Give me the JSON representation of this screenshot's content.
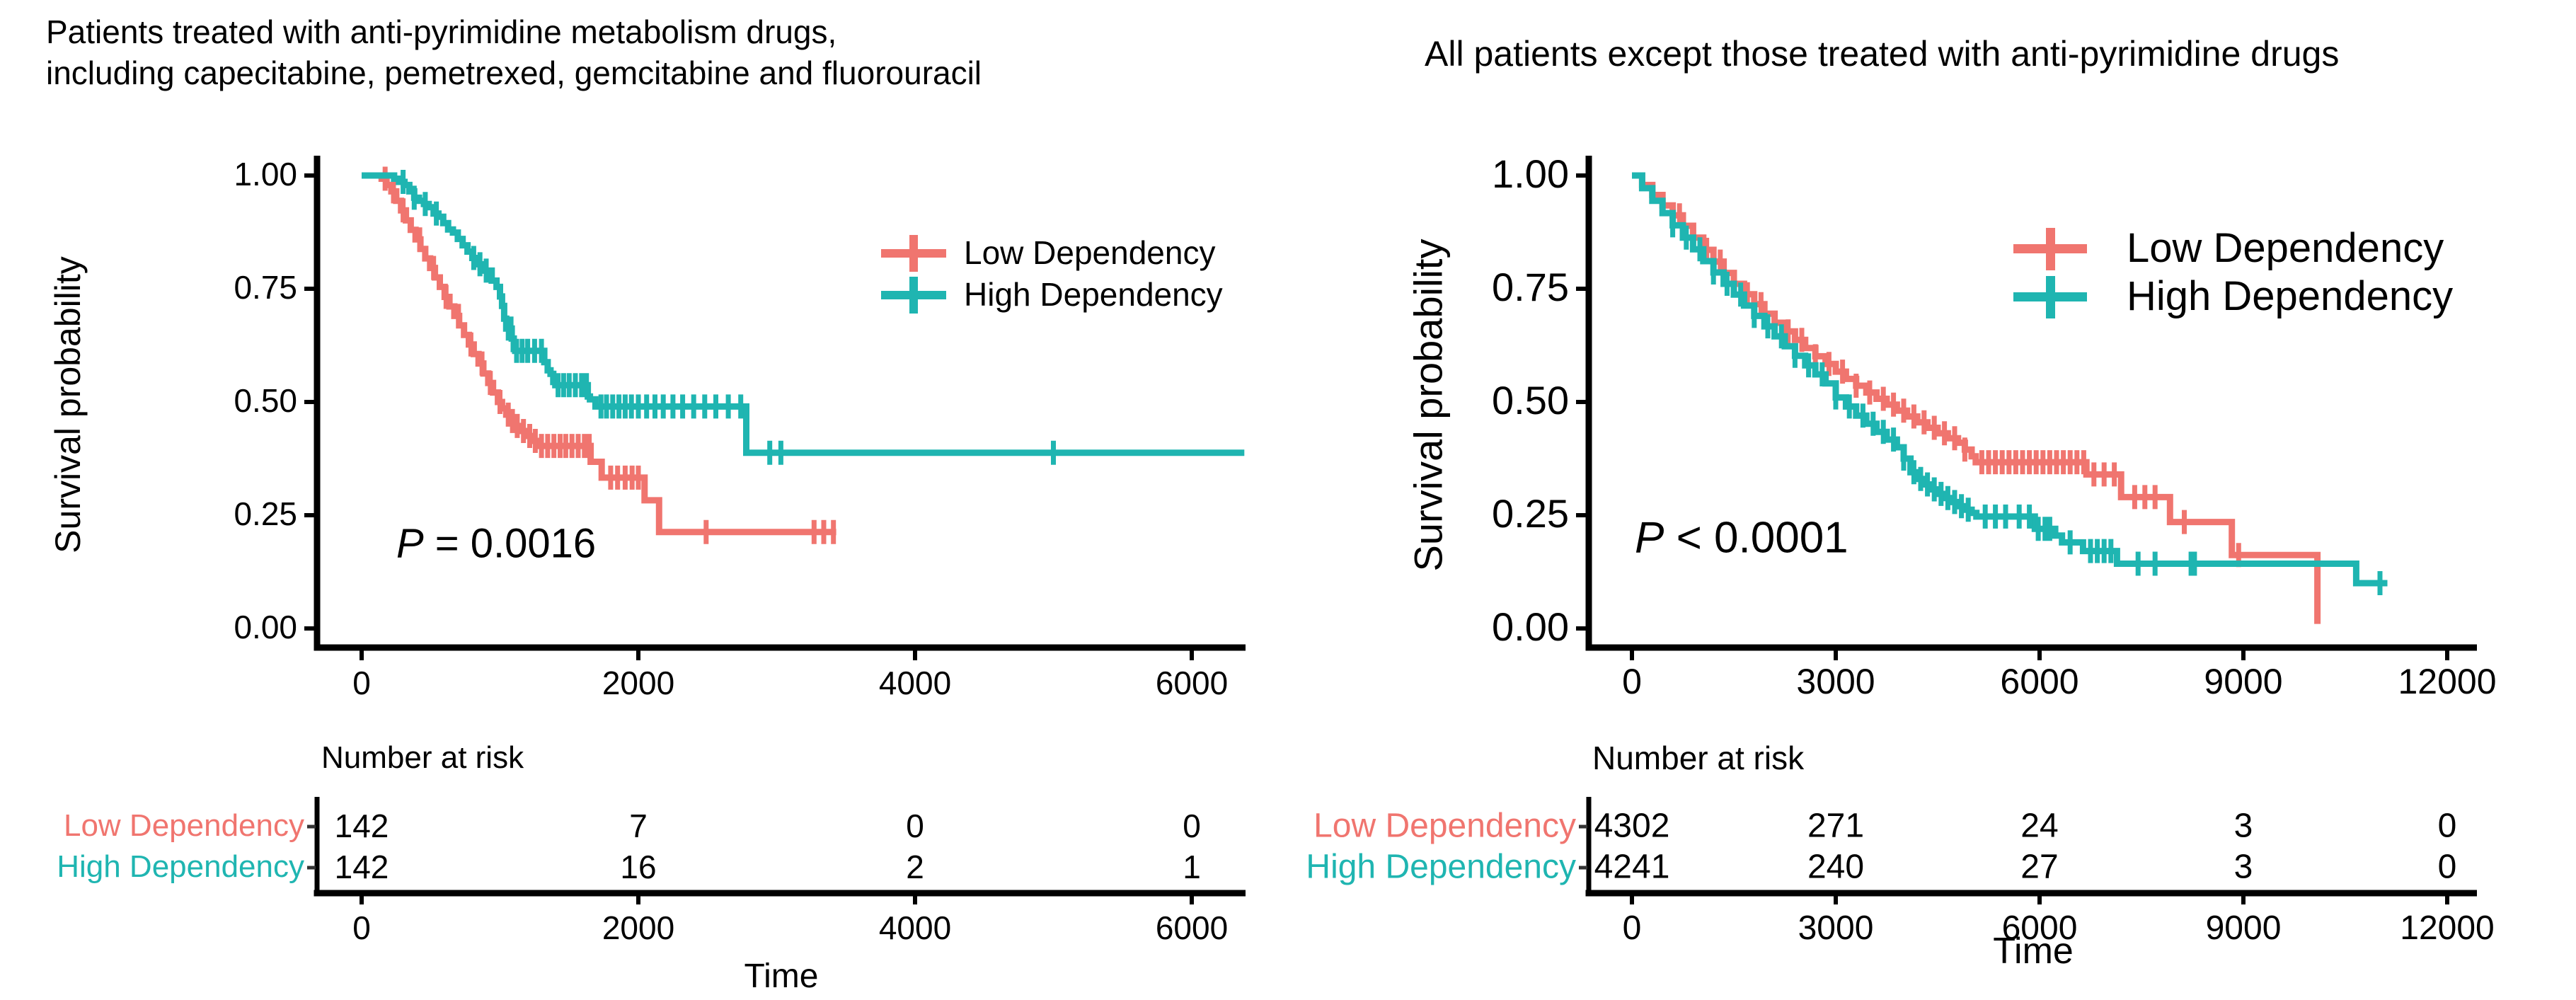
{
  "chart_data": [
    {
      "type": "line",
      "subtype": "kaplan-meier-step",
      "title_lines": [
        "Patients treated with anti-pyrimidine metabolism drugs,",
        "including capecitabine, pemetrexed, gemcitabine and fluorouracil"
      ],
      "ylabel": "Survival probability",
      "xlabel": "Time",
      "pvalue": {
        "prefix": "P",
        "rest": " = 0.0016"
      },
      "xlim": [
        0,
        6380
      ],
      "ylim": [
        0,
        1
      ],
      "x_ticks": [
        0,
        2000,
        4000,
        6000
      ],
      "y_ticks": [
        "0.00",
        "0.25",
        "0.50",
        "0.75",
        "1.00"
      ],
      "grid": false,
      "legend_position": "right-top-inside",
      "series": [
        {
          "name": "Low Dependency",
          "color": "#F0756F",
          "steps": [
            [
              0,
              1
            ],
            [
              145,
              0.993
            ],
            [
              180,
              0.979
            ],
            [
              215,
              0.965
            ],
            [
              250,
              0.944
            ],
            [
              285,
              0.923
            ],
            [
              320,
              0.901
            ],
            [
              355,
              0.88
            ],
            [
              390,
              0.859
            ],
            [
              425,
              0.838
            ],
            [
              460,
              0.817
            ],
            [
              495,
              0.796
            ],
            [
              530,
              0.775
            ],
            [
              565,
              0.754
            ],
            [
              600,
              0.732
            ],
            [
              635,
              0.711
            ],
            [
              670,
              0.69
            ],
            [
              705,
              0.669
            ],
            [
              740,
              0.648
            ],
            [
              775,
              0.627
            ],
            [
              810,
              0.606
            ],
            [
              845,
              0.585
            ],
            [
              880,
              0.563
            ],
            [
              915,
              0.542
            ],
            [
              950,
              0.521
            ],
            [
              985,
              0.5
            ],
            [
              1015,
              0.486
            ],
            [
              1045,
              0.472
            ],
            [
              1075,
              0.458
            ],
            [
              1105,
              0.447
            ],
            [
              1140,
              0.436
            ],
            [
              1180,
              0.425
            ],
            [
              1225,
              0.414
            ],
            [
              1265,
              0.403
            ],
            [
              1655,
              0.368
            ],
            [
              1735,
              0.333
            ],
            [
              2045,
              0.283
            ],
            [
              2150,
              0.213
            ],
            [
              3430,
              0.213
            ]
          ],
          "censor_times": [
            170,
            230,
            300,
            420,
            520,
            610,
            700,
            790,
            870,
            930,
            1000,
            1060,
            1090,
            1125,
            1170,
            1215,
            1255,
            1300,
            1345,
            1390,
            1435,
            1475,
            1520,
            1565,
            1610,
            1645,
            1800,
            1850,
            1905,
            1955,
            2000,
            2490,
            3270,
            3340,
            3410
          ]
        },
        {
          "name": "High Dependency",
          "color": "#1FB5B1",
          "steps": [
            [
              0,
              1
            ],
            [
              235,
              0.993
            ],
            [
              270,
              0.986
            ],
            [
              310,
              0.979
            ],
            [
              345,
              0.965
            ],
            [
              380,
              0.951
            ],
            [
              415,
              0.944
            ],
            [
              450,
              0.937
            ],
            [
              485,
              0.93
            ],
            [
              520,
              0.916
            ],
            [
              555,
              0.909
            ],
            [
              590,
              0.895
            ],
            [
              625,
              0.881
            ],
            [
              660,
              0.874
            ],
            [
              695,
              0.86
            ],
            [
              730,
              0.846
            ],
            [
              765,
              0.832
            ],
            [
              800,
              0.818
            ],
            [
              830,
              0.804
            ],
            [
              860,
              0.797
            ],
            [
              895,
              0.79
            ],
            [
              940,
              0.768
            ],
            [
              975,
              0.754
            ],
            [
              1000,
              0.733
            ],
            [
              1015,
              0.712
            ],
            [
              1030,
              0.684
            ],
            [
              1045,
              0.662
            ],
            [
              1085,
              0.64
            ],
            [
              1100,
              0.617
            ],
            [
              1110,
              0.613
            ],
            [
              1320,
              0.588
            ],
            [
              1345,
              0.57
            ],
            [
              1365,
              0.562
            ],
            [
              1385,
              0.544
            ],
            [
              1400,
              0.537
            ],
            [
              1635,
              0.512
            ],
            [
              1650,
              0.506
            ],
            [
              1690,
              0.49
            ],
            [
              2780,
              0.388
            ],
            [
              6380,
              0.388
            ]
          ],
          "censor_times": [
            300,
            380,
            460,
            540,
            810,
            855,
            900,
            1060,
            1080,
            1120,
            1160,
            1200,
            1250,
            1300,
            1420,
            1460,
            1500,
            1545,
            1590,
            1625,
            1730,
            1770,
            1815,
            1860,
            1905,
            1950,
            2000,
            2060,
            2120,
            2180,
            2250,
            2320,
            2400,
            2480,
            2560,
            2650,
            2740,
            2950,
            3030,
            5000
          ]
        }
      ],
      "risk_table": {
        "header": "Number at risk",
        "rows": [
          {
            "label": "Low Dependency",
            "values": [
              142,
              7,
              0,
              0
            ]
          },
          {
            "label": "High Dependency",
            "values": [
              142,
              16,
              2,
              1
            ]
          }
        ]
      }
    },
    {
      "type": "line",
      "subtype": "kaplan-meier-step",
      "title_lines": [
        "All patients except those treated with anti-pyrimidine drugs"
      ],
      "ylabel": "Survival probability",
      "xlabel": "Time",
      "pvalue": {
        "prefix": "P",
        "rest": " < 0.0001"
      },
      "xlim": [
        0,
        12450
      ],
      "ylim": [
        0,
        1
      ],
      "x_ticks": [
        0,
        3000,
        6000,
        9000,
        12000
      ],
      "y_ticks": [
        "0.00",
        "0.25",
        "0.50",
        "0.75",
        "1.00"
      ],
      "grid": false,
      "legend_position": "right-top-inside",
      "series": [
        {
          "name": "Low Dependency",
          "color": "#F0756F",
          "steps": [
            [
              0,
              1
            ],
            [
              150,
              0.979
            ],
            [
              300,
              0.957
            ],
            [
              450,
              0.934
            ],
            [
              600,
              0.912
            ],
            [
              750,
              0.889
            ],
            [
              900,
              0.863
            ],
            [
              1050,
              0.836
            ],
            [
              1200,
              0.81
            ],
            [
              1350,
              0.785
            ],
            [
              1500,
              0.761
            ],
            [
              1650,
              0.738
            ],
            [
              1800,
              0.716
            ],
            [
              1950,
              0.695
            ],
            [
              2100,
              0.675
            ],
            [
              2250,
              0.656
            ],
            [
              2400,
              0.637
            ],
            [
              2550,
              0.619
            ],
            [
              2700,
              0.601
            ],
            [
              2850,
              0.584
            ],
            [
              3000,
              0.567
            ],
            [
              3150,
              0.551
            ],
            [
              3300,
              0.536
            ],
            [
              3450,
              0.521
            ],
            [
              3600,
              0.507
            ],
            [
              3750,
              0.494
            ],
            [
              3900,
              0.481
            ],
            [
              4050,
              0.468
            ],
            [
              4200,
              0.455
            ],
            [
              4350,
              0.443
            ],
            [
              4500,
              0.431
            ],
            [
              4650,
              0.42
            ],
            [
              4800,
              0.41
            ],
            [
              4900,
              0.395
            ],
            [
              5000,
              0.38
            ],
            [
              5060,
              0.367
            ],
            [
              6690,
              0.34
            ],
            [
              7200,
              0.29
            ],
            [
              7920,
              0.235
            ],
            [
              8830,
              0.162
            ],
            [
              10090,
              0.01
            ]
          ],
          "censor_times": [
            700,
            900,
            1100,
            1300,
            1500,
            1700,
            1900,
            2100,
            2300,
            2500,
            2700,
            2900,
            3100,
            3300,
            3500,
            3700,
            3850,
            4000,
            4150,
            4300,
            4450,
            4600,
            4750,
            4900,
            5150,
            5250,
            5350,
            5450,
            5550,
            5650,
            5750,
            5850,
            5950,
            6050,
            6150,
            6250,
            6350,
            6450,
            6550,
            6650,
            6800,
            6950,
            7100,
            7400,
            7550,
            7700,
            8130,
            8930
          ]
        },
        {
          "name": "High Dependency",
          "color": "#1FB5B1",
          "steps": [
            [
              0,
              1
            ],
            [
              150,
              0.972
            ],
            [
              300,
              0.944
            ],
            [
              450,
              0.917
            ],
            [
              600,
              0.89
            ],
            [
              750,
              0.863
            ],
            [
              900,
              0.837
            ],
            [
              1050,
              0.811
            ],
            [
              1200,
              0.786
            ],
            [
              1350,
              0.761
            ],
            [
              1500,
              0.737
            ],
            [
              1650,
              0.713
            ],
            [
              1800,
              0.69
            ],
            [
              1950,
              0.667
            ],
            [
              2100,
              0.645
            ],
            [
              2250,
              0.623
            ],
            [
              2400,
              0.602
            ],
            [
              2550,
              0.581
            ],
            [
              2700,
              0.561
            ],
            [
              2850,
              0.541
            ],
            [
              3000,
              0.51
            ],
            [
              3150,
              0.49
            ],
            [
              3300,
              0.47
            ],
            [
              3450,
              0.452
            ],
            [
              3600,
              0.434
            ],
            [
              3750,
              0.417
            ],
            [
              3900,
              0.4
            ],
            [
              4000,
              0.375
            ],
            [
              4100,
              0.345
            ],
            [
              4200,
              0.33
            ],
            [
              4300,
              0.318
            ],
            [
              4400,
              0.307
            ],
            [
              4500,
              0.297
            ],
            [
              4600,
              0.288
            ],
            [
              4700,
              0.279
            ],
            [
              4800,
              0.27
            ],
            [
              4900,
              0.262
            ],
            [
              5000,
              0.255
            ],
            [
              5070,
              0.247
            ],
            [
              5930,
              0.22
            ],
            [
              6230,
              0.205
            ],
            [
              6330,
              0.19
            ],
            [
              6640,
              0.171
            ],
            [
              7140,
              0.143
            ],
            [
              10660,
              0.1
            ],
            [
              11120,
              0.1
            ]
          ],
          "censor_times": [
            600,
            800,
            1000,
            1200,
            1400,
            1600,
            1800,
            2000,
            2200,
            2400,
            2600,
            2800,
            3000,
            3200,
            3400,
            3550,
            3700,
            3850,
            4000,
            4150,
            4250,
            4350,
            4450,
            4550,
            4650,
            4750,
            4850,
            4950,
            5200,
            5350,
            5500,
            5700,
            5850,
            5980,
            6080,
            6150,
            6450,
            6750,
            6850,
            6950,
            7050,
            7450,
            7700,
            8230,
            8280,
            11010
          ]
        }
      ],
      "risk_table": {
        "header": "Number at risk",
        "rows": [
          {
            "label": "Low Dependency",
            "values": [
              4302,
              271,
              24,
              3,
              0
            ]
          },
          {
            "label": "High Dependency",
            "values": [
              4241,
              240,
              27,
              3,
              0
            ]
          }
        ]
      }
    }
  ],
  "colors": {
    "low_dependency": "#F0756F",
    "high_dependency": "#1FB5B1",
    "axis": "#000000",
    "text": "#000000"
  }
}
